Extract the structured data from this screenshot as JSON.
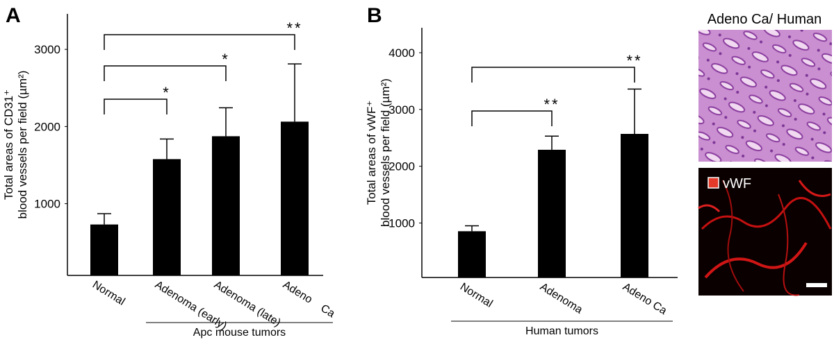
{
  "chart_data": [
    {
      "type": "bar",
      "panel_label": "A",
      "ylabel": [
        "Total areas of CD31⁺",
        "blood vessels per field (µm²)"
      ],
      "categories": [
        "Normal",
        "Adenoma (early)",
        "Adenoma (late)",
        "Adeno    Ca"
      ],
      "values": [
        730,
        1577,
        1874,
        2063
      ],
      "errors": [
        140,
        261,
        369,
        748
      ],
      "color": "#000000",
      "ylim": [
        70,
        3460
      ],
      "yticks": [
        1000,
        2000,
        3000
      ],
      "group_label": "Apc mouse tumors",
      "group_span": [
        1,
        3
      ],
      "significance": [
        {
          "label": "*",
          "between": [
            0,
            1
          ]
        },
        {
          "label": "*",
          "between": [
            0,
            2
          ]
        },
        {
          "label": "**",
          "between": [
            0,
            3
          ]
        }
      ]
    },
    {
      "type": "bar",
      "panel_label": "B",
      "ylabel": [
        "Total areas of vWF⁺",
        "blood vessels per field (µm²)"
      ],
      "categories": [
        "Normal",
        "Adenoma",
        "Adeno Ca"
      ],
      "values": [
        855,
        2290,
        2570
      ],
      "errors": [
        95,
        240,
        790
      ],
      "color": "#000000",
      "ylim": [
        40,
        4440
      ],
      "yticks": [
        1000,
        2000,
        3000,
        4000
      ],
      "group_label": "Human tumors",
      "group_span": [
        0,
        2
      ],
      "significance": [
        {
          "label": "**",
          "between": [
            0,
            1
          ]
        },
        {
          "label": "**",
          "between": [
            0,
            2
          ]
        }
      ]
    }
  ],
  "image_title": "Adeno Ca/ Human",
  "image_label": "vWF"
}
